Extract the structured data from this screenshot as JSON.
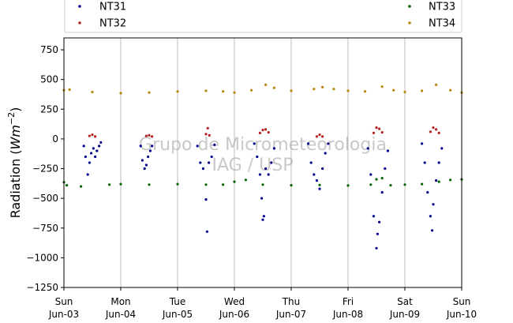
{
  "chart_data": {
    "type": "scatter",
    "ylabel": "Radiation (Wm^-2)",
    "ylim": [
      -1250,
      850
    ],
    "yticks": [
      750,
      500,
      250,
      0,
      -250,
      -500,
      -750,
      -1000,
      -1250
    ],
    "ytick_labels": [
      "750",
      "500",
      "250",
      "0",
      "−250",
      "−500",
      "−750",
      "−1000",
      "−1250"
    ],
    "xlim": [
      0,
      7
    ],
    "xtick_days": [
      {
        "x": 0,
        "weekday": "Sun",
        "date": "Jun-03"
      },
      {
        "x": 1,
        "weekday": "Mon",
        "date": "Jun-04"
      },
      {
        "x": 2,
        "weekday": "Tue",
        "date": "Jun-05"
      },
      {
        "x": 3,
        "weekday": "Wed",
        "date": "Jun-06"
      },
      {
        "x": 4,
        "weekday": "Thu",
        "date": "Jun-07"
      },
      {
        "x": 5,
        "weekday": "Fri",
        "date": "Jun-08"
      },
      {
        "x": 6,
        "weekday": "Sat",
        "date": "Jun-09"
      },
      {
        "x": 7,
        "weekday": "Sun",
        "date": "Jun-10"
      }
    ],
    "grid": "vertical",
    "legend_position": "top",
    "watermark": [
      "Grupo de Micrometeorologia",
      "IAG / USP"
    ],
    "series": [
      {
        "name": "NT31",
        "color": "#00008b",
        "values": [
          [
            0.35,
            -60
          ],
          [
            0.38,
            -150
          ],
          [
            0.42,
            -300
          ],
          [
            0.45,
            -200
          ],
          [
            0.48,
            -120
          ],
          [
            0.52,
            -80
          ],
          [
            0.55,
            -150
          ],
          [
            0.58,
            -100
          ],
          [
            0.62,
            -60
          ],
          [
            0.65,
            -30
          ],
          [
            1.35,
            -60
          ],
          [
            1.38,
            -180
          ],
          [
            1.42,
            -250
          ],
          [
            1.45,
            -220
          ],
          [
            1.48,
            -150
          ],
          [
            1.52,
            -100
          ],
          [
            1.55,
            -60
          ],
          [
            2.35,
            -60
          ],
          [
            2.4,
            -200
          ],
          [
            2.45,
            -250
          ],
          [
            2.5,
            -510
          ],
          [
            2.52,
            -780
          ],
          [
            2.55,
            -200
          ],
          [
            2.6,
            -150
          ],
          [
            2.65,
            -50
          ],
          [
            3.35,
            -40
          ],
          [
            3.4,
            -150
          ],
          [
            3.45,
            -300
          ],
          [
            3.48,
            -500
          ],
          [
            3.5,
            -680
          ],
          [
            3.52,
            -650
          ],
          [
            3.55,
            -250
          ],
          [
            3.6,
            -300
          ],
          [
            3.65,
            -200
          ],
          [
            3.7,
            -80
          ],
          [
            4.3,
            -40
          ],
          [
            4.35,
            -200
          ],
          [
            4.4,
            -300
          ],
          [
            4.45,
            -350
          ],
          [
            4.5,
            -420
          ],
          [
            4.55,
            -250
          ],
          [
            4.6,
            -120
          ],
          [
            4.65,
            -40
          ],
          [
            5.35,
            -80
          ],
          [
            5.4,
            -300
          ],
          [
            5.45,
            -650
          ],
          [
            5.5,
            -920
          ],
          [
            5.52,
            -800
          ],
          [
            5.55,
            -700
          ],
          [
            5.6,
            -450
          ],
          [
            5.65,
            -250
          ],
          [
            5.7,
            -100
          ],
          [
            6.3,
            -40
          ],
          [
            6.35,
            -200
          ],
          [
            6.4,
            -450
          ],
          [
            6.45,
            -650
          ],
          [
            6.48,
            -770
          ],
          [
            6.5,
            -550
          ],
          [
            6.55,
            -350
          ],
          [
            6.6,
            -200
          ],
          [
            6.65,
            -80
          ]
        ]
      },
      {
        "name": "NT32",
        "color": "#b22222",
        "values": [
          [
            0.45,
            25
          ],
          [
            0.5,
            35
          ],
          [
            0.55,
            20
          ],
          [
            1.45,
            25
          ],
          [
            1.5,
            30
          ],
          [
            1.55,
            20
          ],
          [
            2.5,
            40
          ],
          [
            2.53,
            90
          ],
          [
            2.56,
            30
          ],
          [
            3.45,
            50
          ],
          [
            3.5,
            75
          ],
          [
            3.55,
            80
          ],
          [
            3.6,
            55
          ],
          [
            4.45,
            20
          ],
          [
            4.5,
            35
          ],
          [
            4.55,
            20
          ],
          [
            5.45,
            50
          ],
          [
            5.5,
            95
          ],
          [
            5.55,
            85
          ],
          [
            5.6,
            55
          ],
          [
            6.45,
            60
          ],
          [
            6.5,
            95
          ],
          [
            6.55,
            80
          ],
          [
            6.6,
            50
          ]
        ]
      },
      {
        "name": "NT33",
        "color": "#006400",
        "values": [
          [
            0.0,
            -365
          ],
          [
            0.05,
            -390
          ],
          [
            0.3,
            -400
          ],
          [
            0.8,
            -385
          ],
          [
            1.0,
            -380
          ],
          [
            1.5,
            -385
          ],
          [
            2.0,
            -380
          ],
          [
            2.5,
            -385
          ],
          [
            2.8,
            -385
          ],
          [
            3.0,
            -360
          ],
          [
            3.2,
            -345
          ],
          [
            3.5,
            -385
          ],
          [
            4.0,
            -390
          ],
          [
            4.5,
            -388
          ],
          [
            5.0,
            -392
          ],
          [
            5.4,
            -385
          ],
          [
            5.5,
            -340
          ],
          [
            5.6,
            -330
          ],
          [
            5.75,
            -390
          ],
          [
            6.0,
            -385
          ],
          [
            6.3,
            -380
          ],
          [
            6.6,
            -360
          ],
          [
            6.8,
            -345
          ],
          [
            7.0,
            -340
          ]
        ]
      },
      {
        "name": "NT34",
        "color": "#b8860b",
        "values": [
          [
            0.0,
            410
          ],
          [
            0.1,
            415
          ],
          [
            0.5,
            395
          ],
          [
            1.0,
            385
          ],
          [
            1.5,
            390
          ],
          [
            2.0,
            400
          ],
          [
            2.5,
            405
          ],
          [
            2.8,
            400
          ],
          [
            3.0,
            390
          ],
          [
            3.3,
            410
          ],
          [
            3.55,
            455
          ],
          [
            3.7,
            430
          ],
          [
            4.0,
            405
          ],
          [
            4.4,
            420
          ],
          [
            4.55,
            435
          ],
          [
            4.75,
            420
          ],
          [
            5.0,
            405
          ],
          [
            5.3,
            400
          ],
          [
            5.6,
            440
          ],
          [
            5.8,
            410
          ],
          [
            6.0,
            395
          ],
          [
            6.3,
            405
          ],
          [
            6.55,
            455
          ],
          [
            6.8,
            410
          ],
          [
            7.0,
            390
          ]
        ]
      }
    ]
  }
}
